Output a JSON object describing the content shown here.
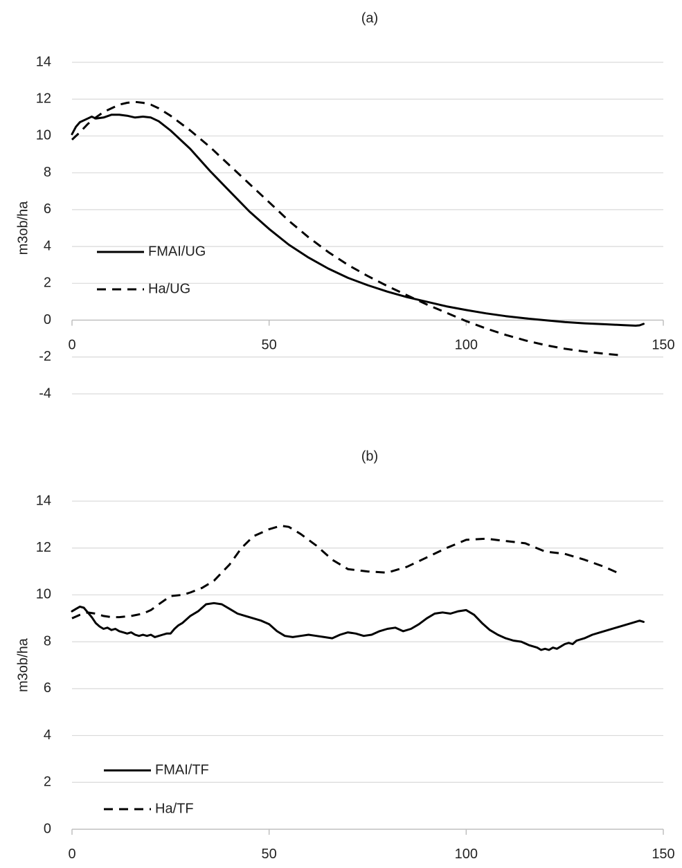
{
  "chart_data": [
    {
      "type": "line",
      "title": "(a)",
      "xlabel": "",
      "ylabel": "m3ob/ha",
      "xlim": [
        0,
        150
      ],
      "ylim": [
        -4,
        14
      ],
      "xticks": [
        0,
        50,
        100,
        150
      ],
      "yticks": [
        -4,
        -2,
        0,
        2,
        4,
        6,
        8,
        10,
        12,
        14
      ],
      "grid": true,
      "legend": "left",
      "series": [
        {
          "name": "FMAI/UG",
          "style": "solid",
          "x": [
            0,
            1,
            2,
            4,
            5,
            6,
            8,
            10,
            12,
            14,
            16,
            18,
            20,
            22,
            25,
            30,
            35,
            40,
            45,
            50,
            55,
            60,
            65,
            70,
            75,
            80,
            85,
            90,
            95,
            100,
            105,
            110,
            115,
            120,
            125,
            130,
            135,
            140,
            143,
            144,
            145
          ],
          "y": [
            10.1,
            10.5,
            10.75,
            10.95,
            11.05,
            10.95,
            11.0,
            11.15,
            11.15,
            11.1,
            11.0,
            11.05,
            11.0,
            10.8,
            10.3,
            9.3,
            8.1,
            7.0,
            5.9,
            4.95,
            4.1,
            3.4,
            2.8,
            2.3,
            1.9,
            1.55,
            1.25,
            1.0,
            0.75,
            0.55,
            0.37,
            0.22,
            0.1,
            0.0,
            -0.1,
            -0.17,
            -0.22,
            -0.27,
            -0.3,
            -0.28,
            -0.2
          ]
        },
        {
          "name": "Ha/UG",
          "style": "dashed",
          "x": [
            0,
            2,
            4,
            6,
            8,
            10,
            12,
            14,
            16,
            18,
            20,
            22,
            25,
            30,
            35,
            40,
            45,
            50,
            55,
            60,
            65,
            70,
            75,
            80,
            85,
            90,
            95,
            100,
            105,
            110,
            115,
            120,
            125,
            130,
            135,
            139
          ],
          "y": [
            9.8,
            10.2,
            10.65,
            11.0,
            11.3,
            11.5,
            11.7,
            11.8,
            11.85,
            11.8,
            11.7,
            11.5,
            11.1,
            10.3,
            9.4,
            8.4,
            7.4,
            6.4,
            5.4,
            4.5,
            3.7,
            3.0,
            2.4,
            1.85,
            1.35,
            0.85,
            0.4,
            -0.05,
            -0.45,
            -0.8,
            -1.1,
            -1.35,
            -1.55,
            -1.7,
            -1.82,
            -1.9
          ]
        }
      ]
    },
    {
      "type": "line",
      "title": "(b)",
      "xlabel": "",
      "ylabel": "m3ob/ha",
      "xlim": [
        0,
        150
      ],
      "ylim": [
        0,
        14
      ],
      "xticks": [
        0,
        50,
        100,
        150
      ],
      "yticks": [
        0,
        2,
        4,
        6,
        8,
        10,
        12,
        14
      ],
      "grid": true,
      "legend": "bottom-left",
      "series": [
        {
          "name": "FMAI/TF",
          "style": "solid",
          "x": [
            0,
            1,
            2,
            3,
            4,
            5,
            6,
            7,
            8,
            9,
            10,
            11,
            12,
            13,
            14,
            15,
            16,
            17,
            18,
            19,
            20,
            21,
            22,
            23,
            24,
            25,
            26,
            27,
            28,
            30,
            32,
            34,
            36,
            38,
            40,
            42,
            44,
            46,
            48,
            50,
            52,
            54,
            56,
            58,
            60,
            62,
            64,
            66,
            68,
            70,
            72,
            74,
            76,
            78,
            80,
            82,
            84,
            86,
            88,
            90,
            92,
            94,
            96,
            98,
            100,
            102,
            104,
            106,
            108,
            110,
            112,
            114,
            116,
            118,
            119,
            120,
            121,
            122,
            123,
            124,
            125,
            126,
            127,
            128,
            130,
            132,
            134,
            136,
            138,
            140,
            142,
            144,
            145
          ],
          "y": [
            9.3,
            9.4,
            9.5,
            9.45,
            9.25,
            9.05,
            8.8,
            8.65,
            8.55,
            8.6,
            8.5,
            8.55,
            8.45,
            8.4,
            8.35,
            8.4,
            8.3,
            8.25,
            8.3,
            8.25,
            8.3,
            8.2,
            8.25,
            8.3,
            8.35,
            8.35,
            8.55,
            8.7,
            8.8,
            9.1,
            9.3,
            9.6,
            9.65,
            9.6,
            9.4,
            9.2,
            9.1,
            9.0,
            8.9,
            8.75,
            8.45,
            8.25,
            8.2,
            8.25,
            8.3,
            8.25,
            8.2,
            8.15,
            8.3,
            8.4,
            8.35,
            8.25,
            8.3,
            8.45,
            8.55,
            8.6,
            8.45,
            8.55,
            8.75,
            9.0,
            9.2,
            9.25,
            9.2,
            9.3,
            9.35,
            9.15,
            8.8,
            8.5,
            8.3,
            8.15,
            8.05,
            8.0,
            7.85,
            7.75,
            7.65,
            7.7,
            7.65,
            7.75,
            7.7,
            7.8,
            7.9,
            7.95,
            7.9,
            8.05,
            8.15,
            8.3,
            8.4,
            8.5,
            8.6,
            8.7,
            8.8,
            8.9,
            8.85
          ]
        },
        {
          "name": "Ha/TF",
          "style": "dashed",
          "x": [
            0,
            2,
            4,
            6,
            8,
            10,
            12,
            15,
            18,
            20,
            22,
            25,
            28,
            30,
            33,
            36,
            40,
            43,
            46,
            50,
            53,
            55,
            58,
            62,
            66,
            70,
            75,
            80,
            85,
            90,
            95,
            100,
            105,
            110,
            115,
            120,
            125,
            130,
            135,
            139
          ],
          "y": [
            9.0,
            9.15,
            9.25,
            9.2,
            9.1,
            9.05,
            9.05,
            9.1,
            9.2,
            9.35,
            9.6,
            9.95,
            10.0,
            10.1,
            10.3,
            10.6,
            11.3,
            12.0,
            12.5,
            12.8,
            12.95,
            12.9,
            12.6,
            12.1,
            11.5,
            11.1,
            11.0,
            10.95,
            11.2,
            11.6,
            12.0,
            12.35,
            12.4,
            12.3,
            12.2,
            11.85,
            11.75,
            11.5,
            11.2,
            10.9
          ]
        }
      ]
    }
  ]
}
